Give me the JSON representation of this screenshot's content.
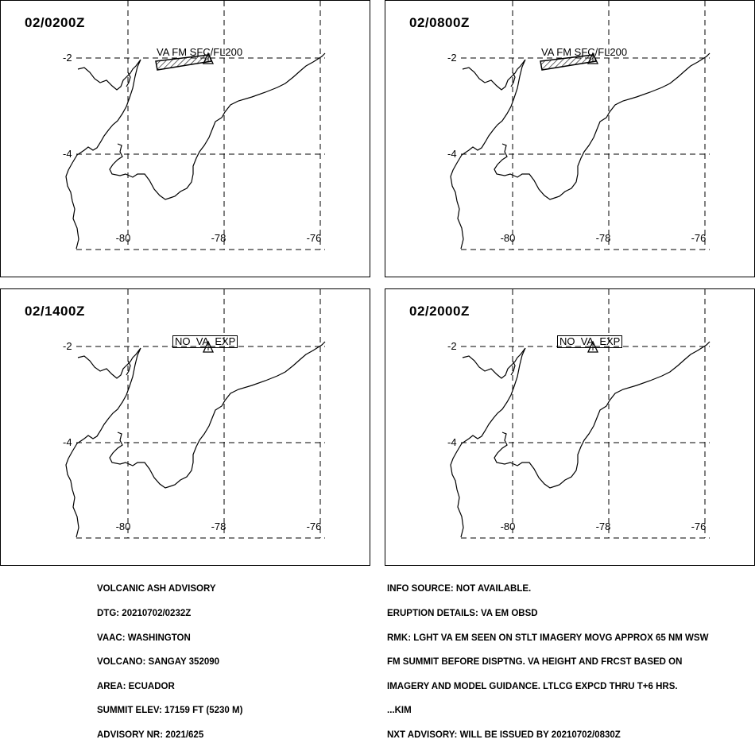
{
  "panels": [
    {
      "time": "02/0200Z",
      "va_label": "VA FM SFC/FL200",
      "va_state": "ash"
    },
    {
      "time": "02/0800Z",
      "va_label": "VA FM SFC/FL200",
      "va_state": "ash"
    },
    {
      "time": "02/1400Z",
      "va_label": "NO_VA_EXP",
      "va_state": "none"
    },
    {
      "time": "02/2000Z",
      "va_label": "NO_VA_EXP",
      "va_state": "none"
    }
  ],
  "map": {
    "lat_labels": [
      "-2",
      "-4"
    ],
    "lon_labels": [
      "-80",
      "-78",
      "-76"
    ]
  },
  "advisory_left": [
    "VOLCANIC ASH ADVISORY",
    "DTG: 20210702/0232Z",
    "VAAC: WASHINGTON",
    "VOLCANO: SANGAY 352090",
    "AREA: ECUADOR",
    "SUMMIT ELEV: 17159 FT (5230 M)",
    "ADVISORY NR: 2021/625"
  ],
  "advisory_right": [
    "INFO SOURCE: NOT AVAILABLE.",
    "ERUPTION DETAILS: VA EM OBSD",
    "RMK: LGHT VA EM SEEN ON STLT IMAGERY MOVG APPROX 65 NM WSW",
    "FM SUMMIT BEFORE DISPTNG. VA HEIGHT AND FRCST BASED ON",
    "IMAGERY AND MODEL GUIDANCE. LTLCG EXPCD THRU T+6 HRS.",
    "...KIM",
    "NXT ADVISORY: WILL BE ISSUED BY 20210702/0830Z"
  ],
  "colors": {
    "line": "#000000",
    "background": "#ffffff"
  }
}
